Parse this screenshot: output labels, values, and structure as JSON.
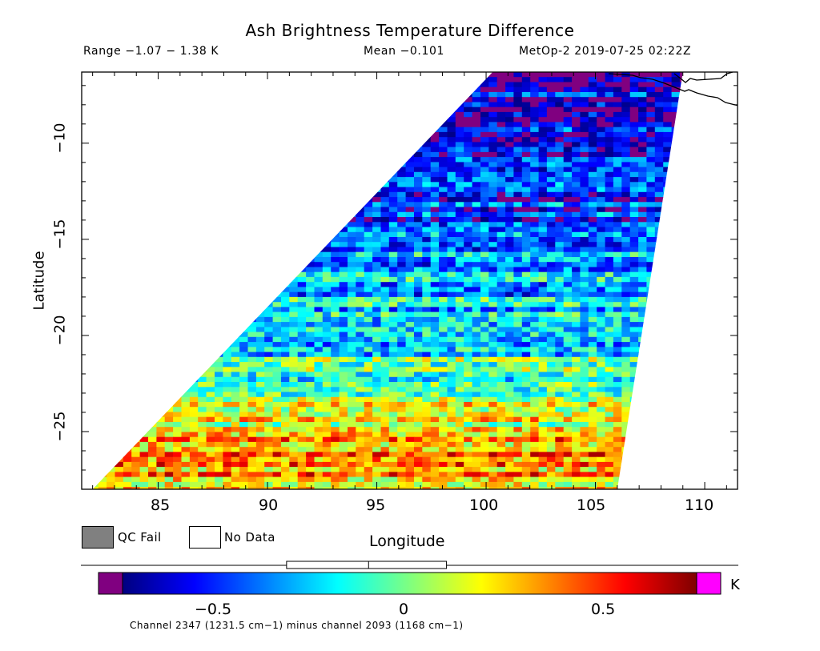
{
  "header": {
    "title": "Ash Brightness Temperature Difference",
    "range": "Range −1.07 − 1.38 K",
    "mean": "Mean −0.101",
    "satellite": "MetOp-2 2019-07-25 02:22Z"
  },
  "legend": {
    "qc_fail": "QC Fail",
    "no_data": "No Data",
    "qc_fail_color": "#808080"
  },
  "colorbar": {
    "unit": "K",
    "low_color": "#800080",
    "high_color": "#ff00ff",
    "tick_labels": [
      "−0.5",
      "0",
      "0.5"
    ]
  },
  "footer": {
    "caption": "Channel 2347 (1231.5 cm−1) minus channel 2093 (1168 cm−1)"
  },
  "chart_data": {
    "type": "heatmap",
    "title": "Ash Brightness Temperature Difference",
    "xlabel": "Longitude",
    "ylabel": "Latitude",
    "xlim": [
      81.5,
      111.5
    ],
    "ylim": [
      -28,
      -6.3
    ],
    "x_ticks": [
      "85",
      "90",
      "95",
      "100",
      "105",
      "110"
    ],
    "y_ticks": [
      "−10",
      "−15",
      "−20",
      "−25"
    ],
    "x_tick_values": [
      85,
      90,
      95,
      100,
      105,
      110
    ],
    "y_tick_values": [
      -10,
      -15,
      -20,
      -25
    ],
    "value_range": [
      -1.07,
      1.38
    ],
    "mean": -0.101,
    "colorbar_range": [
      -0.7,
      0.7
    ],
    "swath_corners_lonlat": [
      [
        100.3,
        -6.3
      ],
      [
        109.0,
        -6.3
      ],
      [
        106.0,
        -28.0
      ],
      [
        82.0,
        -28.0
      ]
    ],
    "regional_pattern": [
      {
        "region": "north (lat -6 to -12)",
        "mean_value": -0.5
      },
      {
        "region": "center (lat -12 to -22)",
        "mean_value": -0.1
      },
      {
        "region": "southwest (lat -22 to -28, lon < 95)",
        "mean_value": 0.3
      },
      {
        "region": "southeast (lat -22 to -28, lon > 100)",
        "mean_value": 0.3
      }
    ],
    "colorbar_ticks": [
      -0.5,
      0,
      0.5
    ],
    "boxplot": {
      "whisker_low": -0.3,
      "q1": -0.27,
      "median": -0.1,
      "q3": 0.09
    }
  }
}
